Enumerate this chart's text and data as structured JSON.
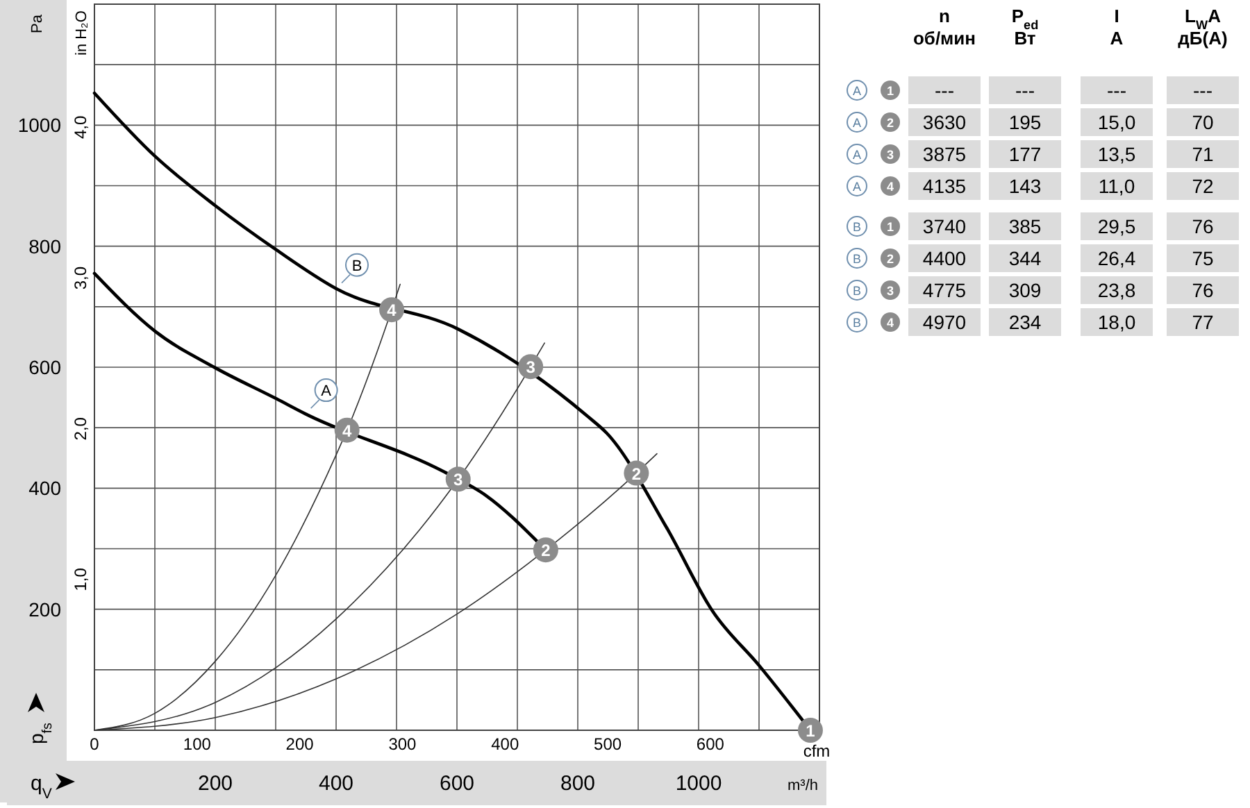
{
  "chart_data": [
    {
      "type": "line",
      "xlabel": "q$_{V}$",
      "ylabel": "p$_{fs}$",
      "x2label": "cfm",
      "y2label": "in H₂O",
      "annotations": [
        "Pa",
        "m³/h",
        {
          "text": "1",
          "x": 1185,
          "y": 0
        },
        {
          "text": "2",
          "x": 897,
          "y": 425
        },
        {
          "text": "3",
          "x": 722,
          "y": 601
        },
        {
          "text": "4",
          "x": 492,
          "y": 695
        },
        {
          "text": "2",
          "x": 747,
          "y": 298
        },
        {
          "text": "3",
          "x": 602,
          "y": 415
        },
        {
          "text": "4",
          "x": 418,
          "y": 496
        }
      ],
      "xlim": [
        0,
        1200
      ],
      "xticks": [
        {
          "value": 100,
          "label": null
        },
        200,
        {
          "value": 300,
          "label": null
        },
        400,
        {
          "value": 500,
          "label": null
        },
        600,
        {
          "value": 700,
          "label": null
        },
        800,
        {
          "value": 900,
          "label": null
        },
        1000,
        {
          "value": 1100,
          "label": null
        }
      ],
      "x2lim": [
        0,
        706.3
      ],
      "x2ticks": [
        0,
        100,
        200,
        300,
        400,
        500,
        600
      ],
      "ylim": [
        0,
        1200
      ],
      "yticks": [
        {
          "value": 100,
          "label": null
        },
        200,
        {
          "value": 300,
          "label": null
        },
        400,
        {
          "value": 500,
          "label": null
        },
        600,
        {
          "value": 700,
          "label": null
        },
        800,
        {
          "value": 900,
          "label": null
        },
        1000,
        {
          "value": 1100,
          "label": null
        }
      ],
      "y2lim": [
        0,
        4.817
      ],
      "y2ticks": [
        {
          "value": 1,
          "label": "1,0"
        },
        {
          "value": 2,
          "label": "2,0"
        },
        {
          "value": 3,
          "label": "3,0"
        },
        {
          "value": 4,
          "label": "4,0"
        }
      ],
      "grid": true,
      "series": [
        {
          "name": "B",
          "type": "line",
          "color": "#000000",
          "x": [
            0,
            101,
            200,
            301,
            400,
            602,
            816,
            848,
            947,
            1023,
            1101,
            1185
          ],
          "values": [
            1053,
            948,
            867,
            794,
            730,
            663,
            519,
            491,
            335,
            197,
            106,
            0
          ]
        },
        {
          "name": "A",
          "type": "line",
          "color": "#000000",
          "x": [
            0,
            101,
            200,
            301,
            349,
            579,
            648,
            738
          ],
          "values": [
            755,
            659,
            599,
            548,
            523,
            427,
            388,
            307
          ]
        },
        {
          "type": "line",
          "color": "#333333",
          "x": [
            0,
            100,
            200,
            300,
            400,
            418,
            492,
            506
          ],
          "values": [
            0,
            28,
            114,
            256,
            455,
            496,
            695,
            737
          ]
        },
        {
          "type": "line",
          "color": "#333333",
          "x": [
            0,
            200,
            301,
            400,
            602,
            722,
            745
          ],
          "values": [
            0,
            46,
            104,
            184,
            415,
            601,
            640
          ]
        },
        {
          "type": "line",
          "color": "#333333",
          "x": [
            0,
            200,
            400,
            600,
            747,
            897,
            931
          ],
          "values": [
            0,
            21,
            85,
            192,
            298,
            425,
            457
          ]
        }
      ]
    },
    {
      "type": "other",
      "annotations": [
        "n",
        "P$_{ed}$",
        "I",
        "L$_{W}$A",
        "об/мин",
        "Вт",
        "A",
        "дБ(A)",
        "A",
        "1",
        "---",
        "---",
        "---",
        "---",
        "A",
        "2",
        "3630",
        "195",
        "15,0",
        "70",
        "A",
        "3",
        "3875",
        "177",
        "13,5",
        "71",
        "A",
        "4",
        "4135",
        "143",
        "11,0",
        "72",
        "B",
        "1",
        "3740",
        "385",
        "29,5",
        "76",
        "B",
        "2",
        "4400",
        "344",
        "26,4",
        "75",
        "B",
        "3",
        "4775",
        "309",
        "23,8",
        "76",
        "B",
        "4",
        "4970",
        "234",
        "18,0",
        "77"
      ]
    }
  ]
}
